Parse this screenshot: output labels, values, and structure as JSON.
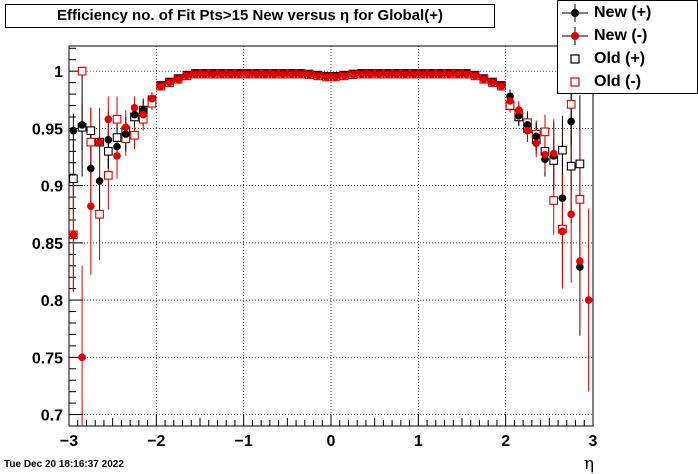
{
  "title": "Efficiency no. of Fit Pts>15 New versus  η for Global(+)",
  "timestamp": "Tue Dec 20 18:16:37 2022",
  "chart_data": {
    "type": "scatter",
    "title": "Efficiency no. of Fit Pts>15 New versus  η for Global(+)",
    "xlabel": "η",
    "ylabel": "",
    "xlim": [
      -3,
      3
    ],
    "ylim": [
      0.69,
      1.022
    ],
    "grid": true,
    "legend_position": "top-right",
    "x_ticks": [
      "−3",
      "−2",
      "−1",
      "0",
      "1",
      "2",
      "3"
    ],
    "y_ticks": [
      "0.7",
      "0.75",
      "0.8",
      "0.85",
      "0.9",
      "0.95",
      "1"
    ],
    "series": [
      {
        "name": "New (+)",
        "color": "#000000",
        "marker": "filled-circle",
        "x": [
          -2.95,
          -2.85,
          -2.75,
          -2.65,
          -2.55,
          -2.45,
          -2.35,
          -2.25,
          -2.15,
          -2.05,
          2.05,
          2.15,
          2.25,
          2.35,
          2.45,
          2.55,
          2.65,
          2.75,
          2.85
        ],
        "y": [
          0.948,
          0.953,
          0.915,
          0.904,
          0.94,
          0.934,
          0.945,
          0.962,
          0.966,
          0.976,
          0.978,
          0.961,
          0.953,
          0.943,
          0.923,
          0.926,
          0.889,
          0.956,
          0.829
        ],
        "err": [
          0.015,
          0.045,
          0.03,
          0.035,
          0.025,
          0.02,
          0.015,
          0.01,
          0.01,
          0.006,
          0.006,
          0.008,
          0.01,
          0.012,
          0.015,
          0.03,
          0.05,
          0.06,
          0.06
        ]
      },
      {
        "name": "New (-)",
        "color": "#e00000",
        "marker": "filled-circle",
        "x": [
          -2.95,
          -2.85,
          -2.75,
          -2.65,
          -2.55,
          -2.45,
          -2.35,
          -2.25,
          -2.15,
          -2.05,
          2.05,
          2.15,
          2.25,
          2.35,
          2.45,
          2.55,
          2.65,
          2.75,
          2.85,
          2.95
        ],
        "y": [
          0.857,
          0.75,
          0.882,
          0.938,
          0.958,
          0.926,
          0.951,
          0.968,
          0.962,
          0.976,
          0.974,
          0.966,
          0.948,
          0.937,
          0.927,
          0.928,
          0.86,
          0.875,
          0.834,
          0.8
        ],
        "err": [
          0.05,
          0.08,
          0.06,
          0.03,
          0.02,
          0.02,
          0.015,
          0.01,
          0.01,
          0.006,
          0.006,
          0.008,
          0.01,
          0.012,
          0.015,
          0.03,
          0.05,
          0.06,
          0.06,
          0.08
        ]
      },
      {
        "name": "Old (+)",
        "color": "#000000",
        "marker": "open-square",
        "x": [
          -2.95,
          -2.85,
          -2.75,
          -2.65,
          -2.55,
          -2.45,
          -2.35,
          -2.25,
          -2.15,
          -2.05,
          2.05,
          2.15,
          2.25,
          2.35,
          2.45,
          2.55,
          2.65,
          2.75,
          2.85
        ],
        "y": [
          0.906,
          0.951,
          0.948,
          0.938,
          0.93,
          0.942,
          0.948,
          0.96,
          0.966,
          0.975,
          0.97,
          0.96,
          0.95,
          0.94,
          0.93,
          0.922,
          0.931,
          0.917,
          0.919
        ],
        "err": [
          0.03,
          0.02,
          0.02,
          0.02,
          0.015,
          0.015,
          0.012,
          0.01,
          0.008,
          0.006,
          0.006,
          0.008,
          0.01,
          0.012,
          0.015,
          0.02,
          0.03,
          0.05,
          0.06
        ]
      },
      {
        "name": "Old (-)",
        "color": "#e00000",
        "marker": "open-square",
        "x": [
          -2.95,
          -2.85,
          -2.75,
          -2.65,
          -2.55,
          -2.45,
          -2.35,
          -2.25,
          -2.15,
          -2.05,
          2.05,
          2.15,
          2.25,
          2.35,
          2.45,
          2.55,
          2.65,
          2.75,
          2.85
        ],
        "y": [
          0.857,
          1.0,
          0.938,
          0.875,
          0.909,
          0.958,
          0.941,
          0.944,
          0.958,
          0.972,
          0.97,
          0.963,
          0.955,
          0.945,
          0.947,
          0.887,
          0.862,
          0.971,
          0.888
        ],
        "err": [
          0.05,
          0.0,
          0.03,
          0.04,
          0.03,
          0.02,
          0.015,
          0.012,
          0.01,
          0.006,
          0.006,
          0.008,
          0.01,
          0.012,
          0.015,
          0.03,
          0.05,
          0.04,
          0.06
        ]
      }
    ],
    "plateau": {
      "x_from": -2.0,
      "x_to": 2.0,
      "y_edge": 0.986,
      "y_top": 0.998,
      "y_center": 0.995
    }
  }
}
